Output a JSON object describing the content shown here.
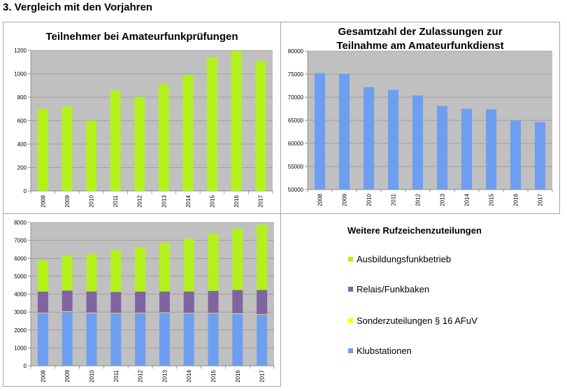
{
  "page_heading": "3. Vergleich mit den Vorjahren",
  "chart_data": [
    {
      "type": "bar",
      "title": "Teilnehmer bei Amateurfunkprüfungen",
      "categories": [
        "2008",
        "2009",
        "2010",
        "2011",
        "2012",
        "2013",
        "2014",
        "2015",
        "2016",
        "2017"
      ],
      "values": [
        700,
        720,
        600,
        855,
        800,
        910,
        990,
        1140,
        1195,
        1110
      ],
      "ylim": [
        0,
        1200
      ],
      "yticks": [
        0,
        200,
        400,
        600,
        800,
        1000,
        1200
      ],
      "grid": true,
      "colors": {
        "bar": "#b3f11b",
        "plot_bg": "#c0c0c0"
      }
    },
    {
      "type": "bar",
      "title": "Gesamtzahl der Zulassungen zur Teilnahme am Amateurfunkdienst",
      "title_lines": [
        "Gesamtzahl der Zulassungen zur",
        "Teilnahme am Amateurfunkdienst"
      ],
      "categories": [
        "2008",
        "2009",
        "2010",
        "2011",
        "2012",
        "2013",
        "2014",
        "2015",
        "2016",
        "2017"
      ],
      "values": [
        75200,
        75000,
        72200,
        71600,
        70400,
        68100,
        67500,
        67400,
        65000,
        64600
      ],
      "ylim": [
        50000,
        80000
      ],
      "yticks": [
        50000,
        55000,
        60000,
        65000,
        70000,
        75000,
        80000
      ],
      "grid": true,
      "colors": {
        "bar": "#6e9eef",
        "plot_bg": "#c0c0c0"
      }
    },
    {
      "type": "bar",
      "stacked": true,
      "title": "Weitere Rufzeichenzuteilungen",
      "categories": [
        "2008",
        "2009",
        "2010",
        "2011",
        "2012",
        "2013",
        "2014",
        "2015",
        "2016",
        "2017"
      ],
      "series": [
        {
          "name": "Klubstationen",
          "color": "#6e9eef",
          "values": [
            2930,
            3010,
            2940,
            2920,
            2930,
            2950,
            2920,
            2920,
            2900,
            2850
          ]
        },
        {
          "name": "Sonderzuteilungen § 16 AFuV",
          "color": "#ffff00",
          "values": [
            30,
            30,
            30,
            30,
            30,
            30,
            30,
            30,
            30,
            30
          ]
        },
        {
          "name": "Relais/Funkbaken",
          "color": "#8064a2",
          "values": [
            1180,
            1160,
            1180,
            1170,
            1180,
            1170,
            1200,
            1230,
            1300,
            1350
          ]
        },
        {
          "name": "Ausbildungsfunkbetrieb",
          "color": "#b3f11b",
          "values": [
            1740,
            1960,
            2080,
            2330,
            2480,
            2690,
            2940,
            3200,
            3440,
            3640
          ]
        }
      ],
      "ylim": [
        0,
        8000
      ],
      "yticks": [
        0,
        1000,
        2000,
        3000,
        4000,
        5000,
        6000,
        7000,
        8000
      ],
      "grid": true,
      "legend": "right",
      "colors": {
        "plot_bg": "#c0c0c0"
      }
    }
  ]
}
